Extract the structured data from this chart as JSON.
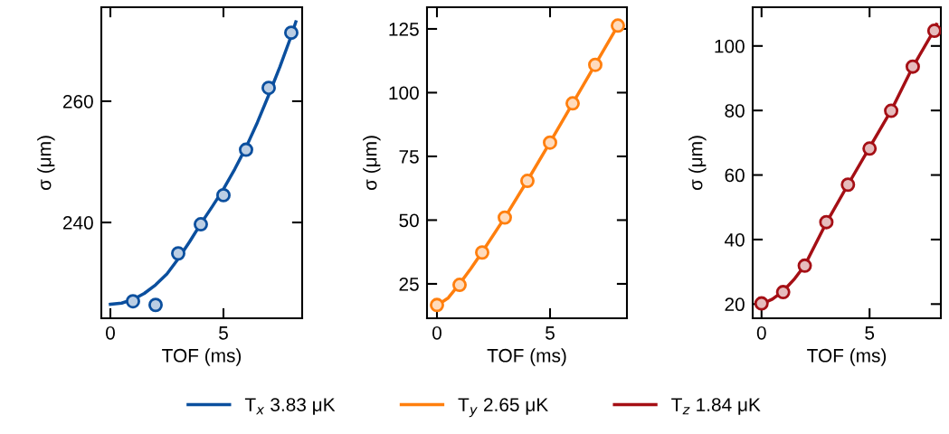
{
  "chart_data": [
    {
      "type": "line",
      "xlabel": "TOF (ms)",
      "ylabel": "σ (μm)",
      "xlim": [
        -0.4,
        8.48
      ],
      "ylim": [
        224.2,
        275.5
      ],
      "xticks": [
        0,
        5
      ],
      "yticks": [
        240,
        260
      ],
      "grid": false,
      "legend": "bottom",
      "series": [
        {
          "type": "line",
          "name": "T$_{x}$ 3.83 μK",
          "color": "#0b4f9e",
          "marker": "none",
          "x": [
            0,
            0.5,
            1,
            1.5,
            2,
            2.5,
            3,
            3.5,
            4,
            4.5,
            5,
            5.5,
            6,
            6.5,
            7,
            7.5,
            8,
            8.2
          ],
          "values": [
            226.5,
            226.7,
            227.3,
            228.3,
            229.7,
            231.5,
            234.0,
            236.8,
            239.8,
            242.6,
            245.5,
            248.8,
            252.4,
            256.5,
            261.0,
            265.7,
            270.8,
            273.1
          ]
        },
        {
          "type": "scatter",
          "color": "#0b4f9e",
          "marker": "circle",
          "x": [
            1,
            2,
            3,
            4,
            5,
            6,
            7,
            8
          ],
          "values": [
            227.0,
            226.4,
            234.9,
            239.7,
            244.5,
            252.0,
            262.2,
            271.3
          ]
        }
      ]
    },
    {
      "type": "line",
      "xlabel": "TOF (ms)",
      "ylabel": "σ (μm)",
      "xlim": [
        -0.44,
        8.4
      ],
      "ylim": [
        11.5,
        133.5
      ],
      "xticks": [
        0,
        5
      ],
      "yticks": [
        25,
        50,
        75,
        100,
        125
      ],
      "grid": false,
      "legend": "bottom",
      "series": [
        {
          "type": "line",
          "name": "T$_{y}$ 2.65 μK",
          "color": "#ff7f0e",
          "marker": "none",
          "x": [
            0,
            0.5,
            1,
            1.5,
            2,
            3,
            4,
            5,
            6,
            7,
            8,
            8.05
          ],
          "values": [
            16.5,
            19.5,
            25.0,
            31.0,
            37.5,
            51.0,
            65.5,
            80.5,
            95.8,
            111.0,
            126.3,
            127.2
          ]
        },
        {
          "type": "scatter",
          "color": "#ff7f0e",
          "marker": "circle",
          "x": [
            0,
            1,
            2,
            3,
            4,
            5,
            6,
            7,
            8
          ],
          "values": [
            16.7,
            24.6,
            37.3,
            51.0,
            65.4,
            80.4,
            95.8,
            110.9,
            126.3
          ]
        }
      ]
    },
    {
      "type": "line",
      "xlabel": "TOF (ms)",
      "ylabel": "σ (μm)",
      "xlim": [
        -0.41,
        8.3
      ],
      "ylim": [
        15.6,
        112
      ],
      "xticks": [
        0,
        5
      ],
      "yticks": [
        20,
        40,
        60,
        80,
        100
      ],
      "grid": false,
      "legend": "bottom",
      "series": [
        {
          "type": "line",
          "name": "T$_{z}$ 1.84 μK",
          "color": "#a50f15",
          "marker": "none",
          "x": [
            0,
            0.5,
            1,
            1.5,
            2,
            3,
            4,
            5,
            6,
            7,
            8,
            8.1
          ],
          "values": [
            20.0,
            21.5,
            24.0,
            27.6,
            32.0,
            45.2,
            57.0,
            68.5,
            80.0,
            93.5,
            105.0,
            106.7
          ]
        },
        {
          "type": "scatter",
          "color": "#a50f15",
          "marker": "circle",
          "x": [
            0,
            1,
            2,
            3,
            4,
            5,
            6,
            7,
            8
          ],
          "values": [
            20.2,
            23.7,
            31.9,
            45.4,
            57.0,
            68.2,
            79.9,
            93.6,
            104.7
          ]
        }
      ]
    }
  ]
}
